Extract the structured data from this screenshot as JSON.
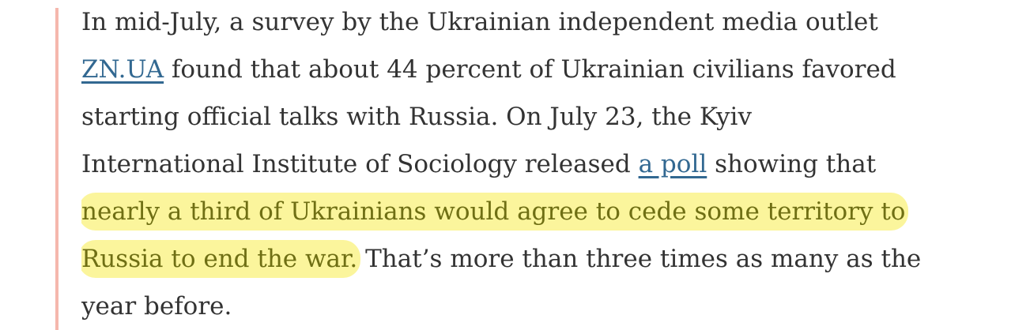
{
  "paragraph": {
    "lines": [
      [
        {
          "kind": "text",
          "text": "In mid-July, a survey by the Ukrainian independent media outlet"
        }
      ],
      [
        {
          "kind": "link",
          "text": "ZN.UA"
        },
        {
          "kind": "text",
          "text": " found that about 44 percent of Ukrainian civilians favored"
        }
      ],
      [
        {
          "kind": "text",
          "text": "starting official talks with Russia. On July 23, the Kyiv"
        }
      ],
      [
        {
          "kind": "text",
          "text": "International Institute of Sociology released "
        },
        {
          "kind": "link",
          "text": "a poll"
        },
        {
          "kind": "text",
          "text": " showing that"
        }
      ],
      [
        {
          "kind": "highlight",
          "text": "nearly a third of Ukrainians would agree to cede some territory to"
        }
      ],
      [
        {
          "kind": "highlight",
          "text": "Russia to end the war."
        },
        {
          "kind": "text",
          "text": " That’s more than three times as many as the"
        }
      ],
      [
        {
          "kind": "text",
          "text": "year before."
        }
      ]
    ]
  }
}
